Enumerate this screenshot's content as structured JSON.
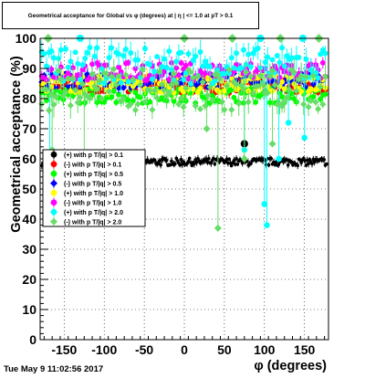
{
  "title": "Geometrical acceptance for Global vs φ (degrees) at | η | <= 1.0 at pT > 0.1",
  "timestamp": "Tue May  9 11:02:56 2017",
  "chart_data": {
    "type": "scatter",
    "xlabel": "φ (degrees)",
    "ylabel": "Geometrical acceptance (%)",
    "xlim": [
      -180,
      180
    ],
    "ylim": [
      0,
      100
    ],
    "xticks": [
      -150,
      -100,
      -50,
      0,
      50,
      100,
      150
    ],
    "yticks": [
      0,
      10,
      20,
      30,
      40,
      50,
      60,
      70,
      80,
      90,
      100
    ],
    "grid": true,
    "legend_position": "middle-left",
    "series": [
      {
        "name": "(+) with p T/|q| > 0.1",
        "color": "#000000",
        "marker": "circle",
        "level": 59,
        "spread": 1.2,
        "low_outliers": [],
        "high_outliers": [
          {
            "x": 75,
            "y": 65
          }
        ]
      },
      {
        "name": "(-) with p T/|q| > 0.1",
        "color": "#ff0000",
        "marker": "circle",
        "level": 84,
        "spread": 2.2,
        "low_outliers": [],
        "high_outliers": []
      },
      {
        "name": "(+) with p T/|q| > 0.5",
        "color": "#00ff00",
        "marker": "circle",
        "level": 81,
        "spread": 2.5,
        "low_outliers": [],
        "high_outliers": []
      },
      {
        "name": "(-) with p T/|q| > 0.5",
        "color": "#0000ff",
        "marker": "diamond",
        "level": 86,
        "spread": 2.5,
        "low_outliers": [],
        "high_outliers": []
      },
      {
        "name": "(+) with p T/|q| > 1.0",
        "color": "#ffff00",
        "marker": "circle",
        "level": 85,
        "spread": 3,
        "low_outliers": [],
        "high_outliers": []
      },
      {
        "name": "(-) with p T/|q| > 1.0",
        "color": "#ff00ff",
        "marker": "circle",
        "level": 89,
        "spread": 3,
        "low_outliers": [],
        "high_outliers": []
      },
      {
        "name": "(+) with p T/|q| > 2.0",
        "color": "#00ffff",
        "marker": "circle",
        "level": 91,
        "spread": 6,
        "low_outliers": [
          {
            "x": -168,
            "y": 47
          },
          {
            "x": 100,
            "y": 45
          },
          {
            "x": 103,
            "y": 38
          },
          {
            "x": 118,
            "y": 60
          },
          {
            "x": 150,
            "y": 67
          },
          {
            "x": 75,
            "y": 63
          },
          {
            "x": 130,
            "y": 72
          }
        ],
        "high_outliers": [
          {
            "x": -130,
            "y": 100
          },
          {
            "x": 95,
            "y": 100
          },
          {
            "x": 148,
            "y": 100
          }
        ]
      },
      {
        "name": "(-) with p T/|q| > 2.0",
        "color": "#66dd66",
        "marker": "diamond",
        "level": 83,
        "spread": 7,
        "low_outliers": [
          {
            "x": -165,
            "y": 63
          },
          {
            "x": -125,
            "y": 57
          },
          {
            "x": 42,
            "y": 37
          },
          {
            "x": 75,
            "y": 60
          },
          {
            "x": 28,
            "y": 70
          },
          {
            "x": 110,
            "y": 65
          }
        ],
        "high_outliers": [
          {
            "x": -170,
            "y": 100
          },
          {
            "x": 0,
            "y": 100
          },
          {
            "x": 60,
            "y": 100
          },
          {
            "x": 120,
            "y": 100
          },
          {
            "x": 168,
            "y": 100
          }
        ]
      }
    ]
  }
}
